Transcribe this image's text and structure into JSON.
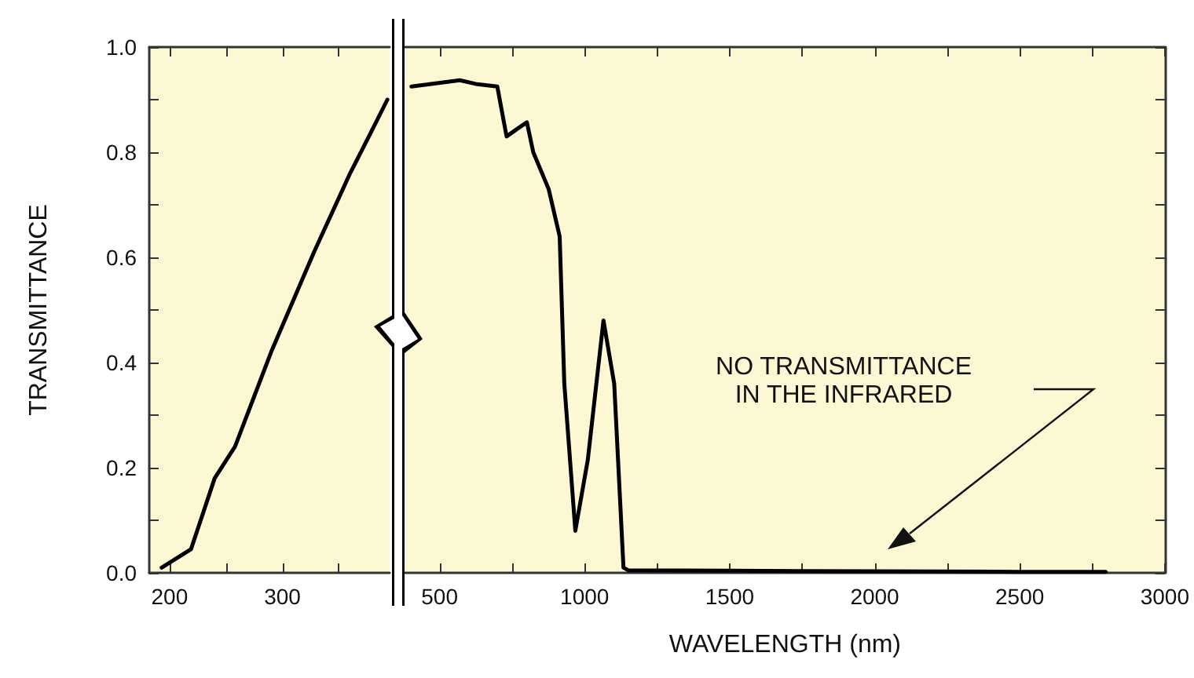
{
  "chart_data": [
    {
      "type": "line",
      "ylabel": "TRANSMITTANCE",
      "x": [
        193,
        219,
        240,
        258,
        290,
        328,
        360,
        379,
        393
      ],
      "series": [
        {
          "color": "#000000",
          "values": [
            0.01,
            0.045,
            0.18,
            0.24,
            0.42,
            0.61,
            0.76,
            0.84,
            0.9
          ]
        }
      ],
      "xlim": [
        182,
        395
      ],
      "xticks": [
        200,
        {
          "value": 250,
          "label": null
        },
        300,
        {
          "value": 350,
          "label": null
        }
      ],
      "ylim": [
        0,
        1
      ],
      "yticks": [
        {
          "value": 0,
          "label": "0.0"
        },
        {
          "value": 0.1,
          "label": null
        },
        {
          "value": 0.2,
          "label": "0.2"
        },
        {
          "value": 0.3,
          "label": null
        },
        {
          "value": 0.4,
          "label": "0.4"
        },
        {
          "value": 0.5,
          "label": null
        },
        {
          "value": 0.6,
          "label": "0.6"
        },
        {
          "value": 0.7,
          "label": null
        },
        {
          "value": 0.8,
          "label": "0.8"
        },
        {
          "value": 0.9,
          "label": null
        },
        {
          "value": 1,
          "label": "1.0"
        }
      ]
    },
    {
      "type": "line",
      "xlabel": "WAVELENGTH (nm)",
      "annotations": [
        "NO TRANSMITTANCE\nIN THE INFRARED"
      ],
      "x": [
        403,
        570,
        624,
        699,
        731,
        769,
        801,
        823,
        876,
        914,
        930,
        968,
        1011,
        1065,
        1102,
        1134,
        1150,
        1500,
        2000,
        2500,
        2796
      ],
      "series": [
        {
          "color": "#000000",
          "values": [
            0.925,
            0.937,
            0.93,
            0.925,
            0.83,
            0.845,
            0.857,
            0.8,
            0.73,
            0.64,
            0.36,
            0.08,
            0.215,
            0.48,
            0.36,
            0.01,
            0.005,
            0.004,
            0.003,
            0.002,
            0.002
          ]
        }
      ],
      "xlim": [
        382,
        3000
      ],
      "xticks": [
        500,
        {
          "value": 750,
          "label": null
        },
        1000,
        {
          "value": 1250,
          "label": null
        },
        1500,
        {
          "value": 1750,
          "label": null
        },
        2000,
        {
          "value": 2250,
          "label": null
        },
        2500,
        {
          "value": 2750,
          "label": null
        },
        3000
      ],
      "ylim": [
        0,
        1
      ],
      "yticks": [
        {
          "value": 0,
          "label": null
        },
        {
          "value": 0.1,
          "label": null
        },
        {
          "value": 0.2,
          "label": null
        },
        {
          "value": 0.3,
          "label": null
        },
        {
          "value": 0.4,
          "label": null
        },
        {
          "value": 0.5,
          "label": null
        },
        {
          "value": 0.6,
          "label": null
        },
        {
          "value": 0.7,
          "label": null
        },
        {
          "value": 0.8,
          "label": null
        },
        {
          "value": 0.9,
          "label": null
        },
        {
          "value": 1,
          "label": null
        }
      ],
      "tick_labels": "x"
    }
  ]
}
